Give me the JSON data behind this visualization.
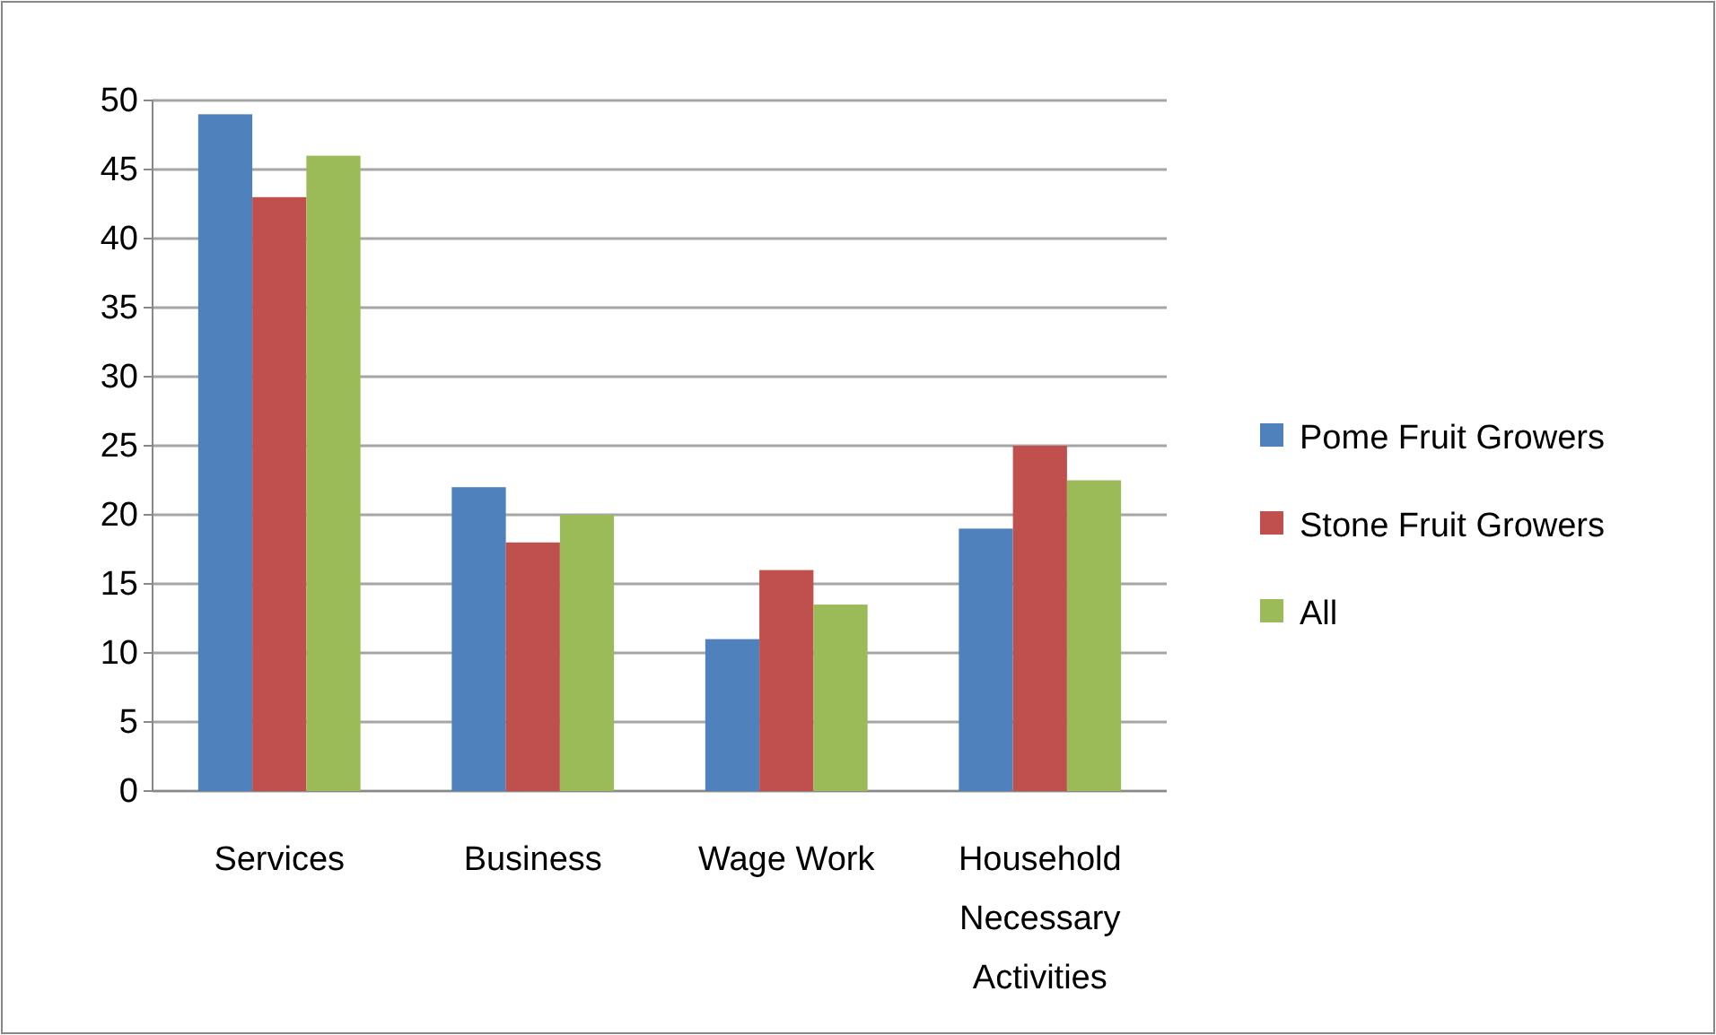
{
  "chart_data": {
    "type": "bar",
    "categories": [
      "Services",
      "Business",
      "Wage Work",
      "Household Necessary Activities"
    ],
    "series": [
      {
        "name": "Pome Fruit Growers",
        "color": "#4f81bd",
        "values": [
          49,
          22,
          11,
          19
        ]
      },
      {
        "name": "Stone Fruit Growers",
        "color": "#c0504d",
        "values": [
          43,
          18,
          16,
          25
        ]
      },
      {
        "name": "All",
        "color": "#9bbb59",
        "values": [
          46,
          20,
          13.5,
          22.5
        ]
      }
    ],
    "ylim": [
      0,
      50
    ],
    "yticks": [
      0,
      5,
      10,
      15,
      20,
      25,
      30,
      35,
      40,
      45,
      50
    ],
    "grid": "y",
    "legend": "right"
  }
}
